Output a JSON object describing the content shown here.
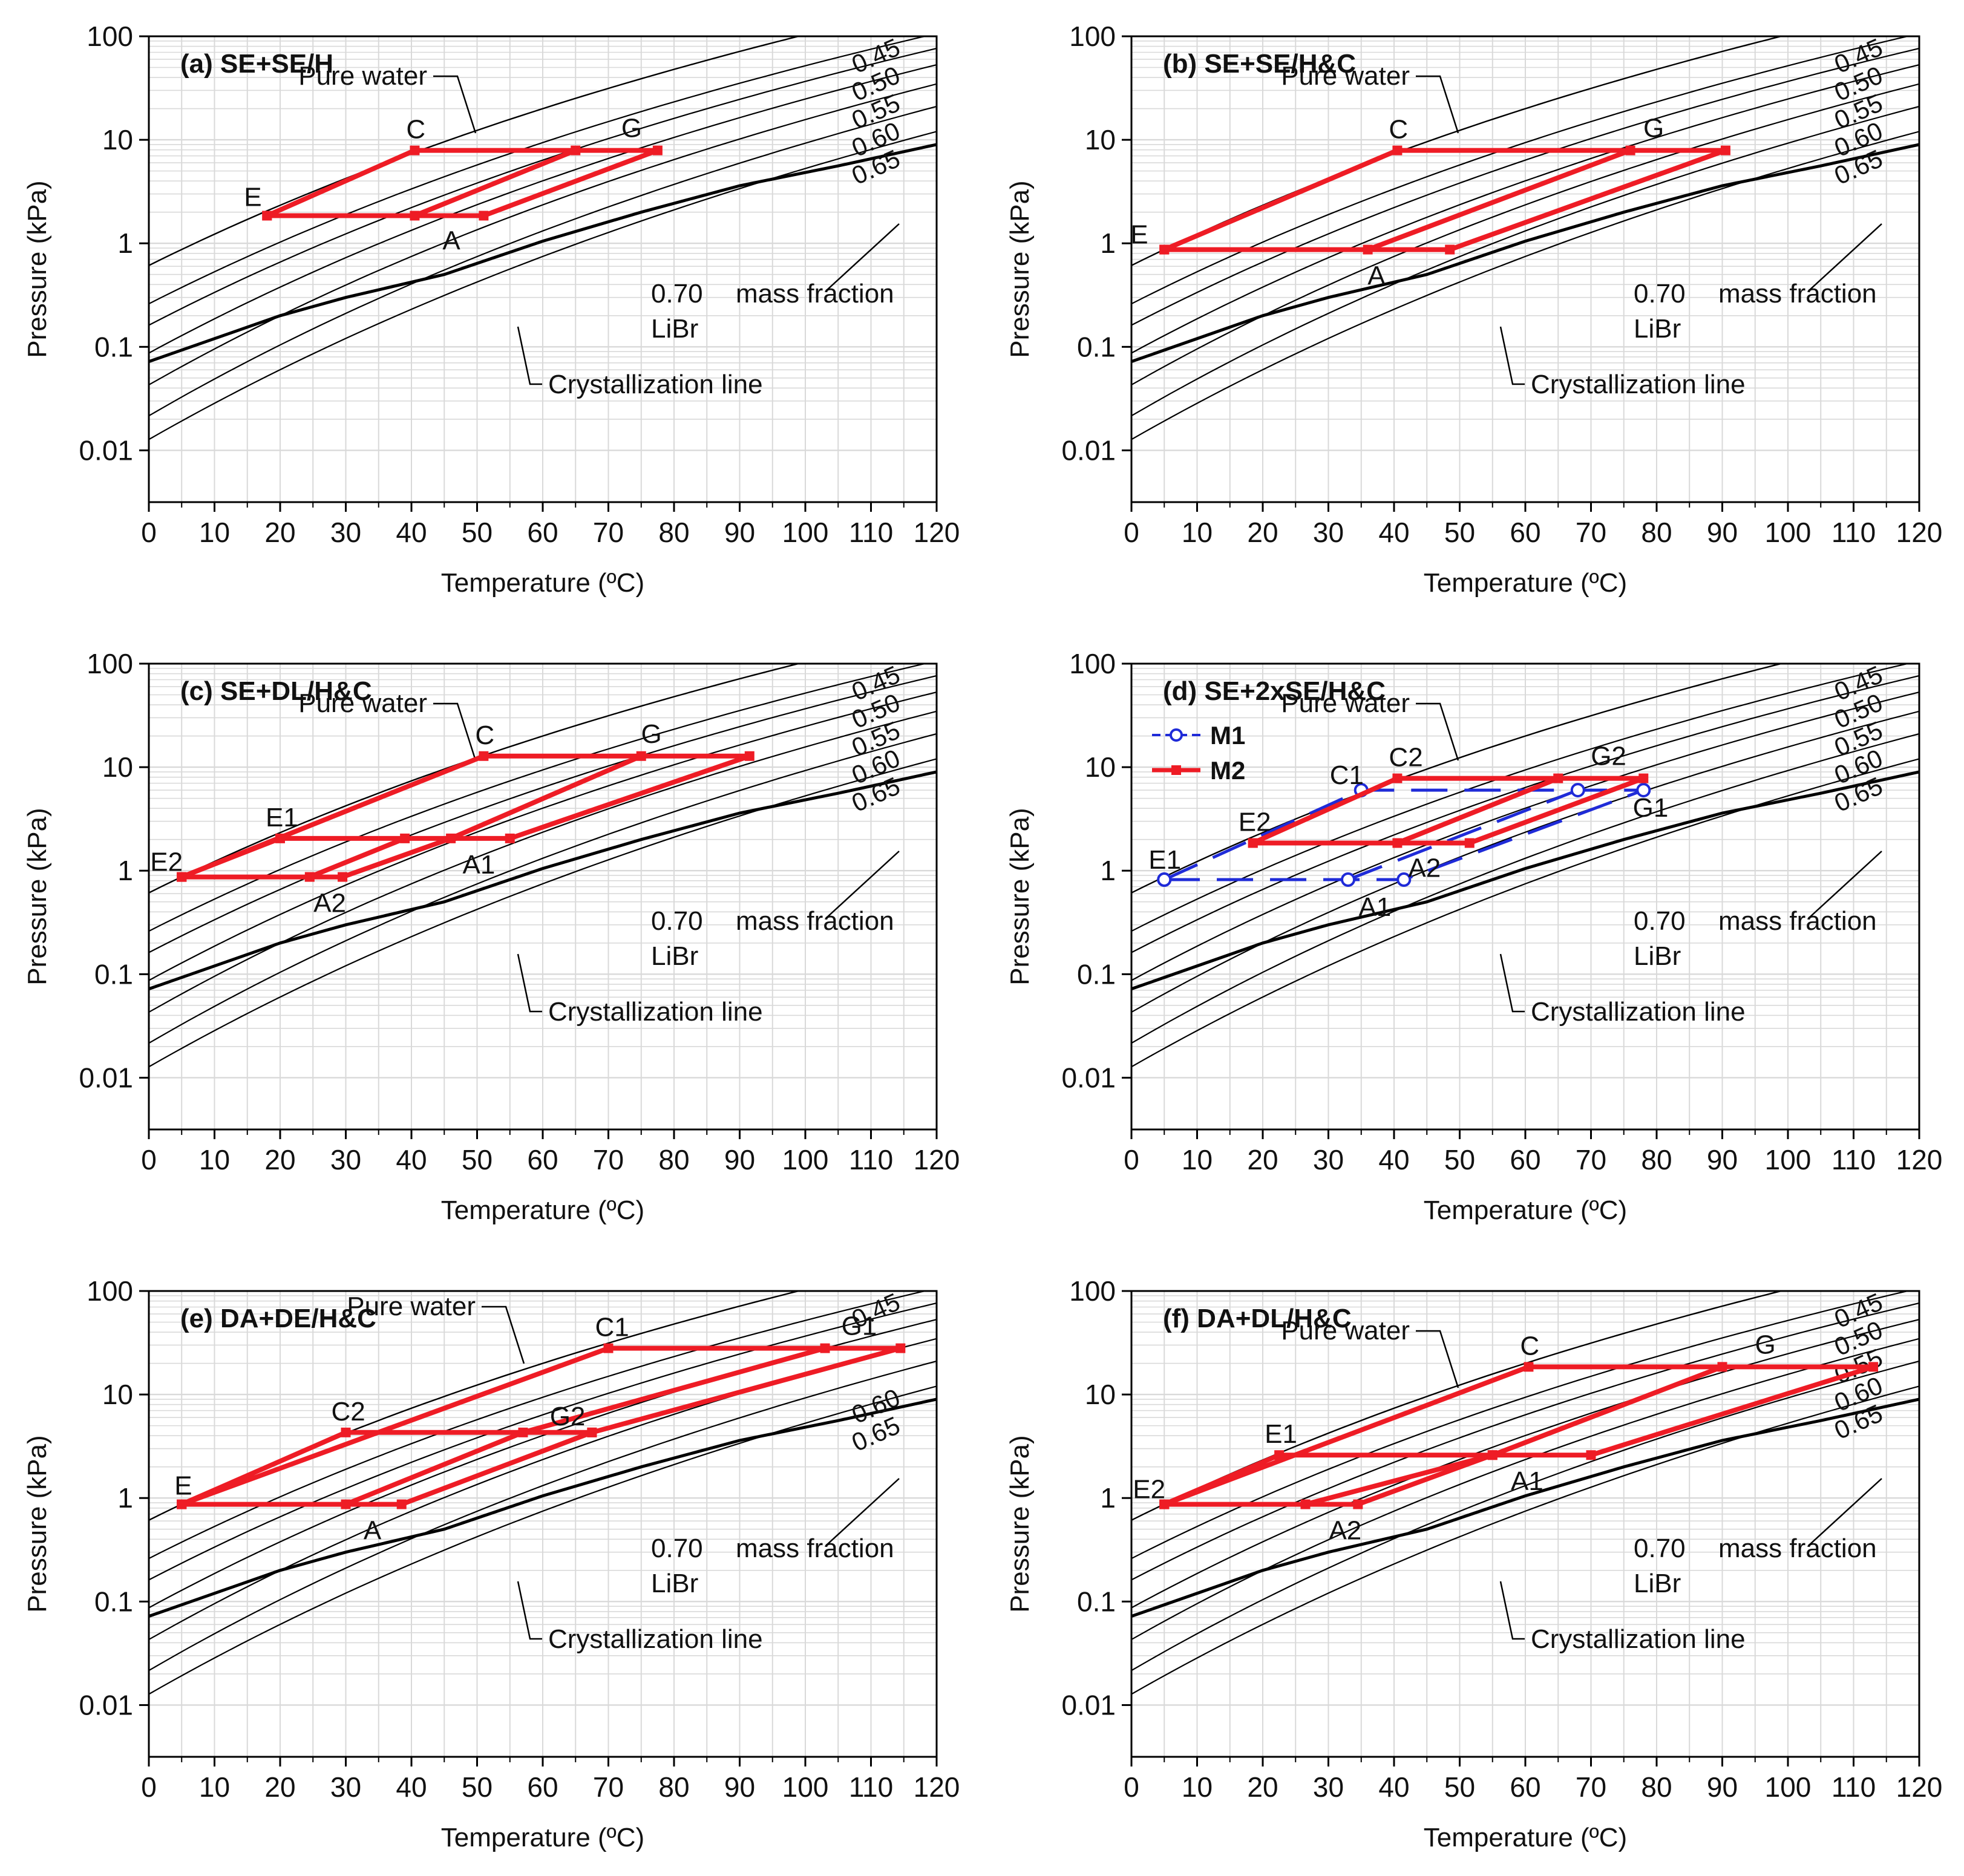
{
  "figure": {
    "description_labels": {
      "pure_water": "Pure water",
      "crystallization": "Crystallization line",
      "mass_fraction": "mass fraction",
      "libr": "LiBr"
    },
    "colors": {
      "cycle_red": "#ee1c25",
      "cycle_blue": "#1f2bd8",
      "grid": "#d9d9d9",
      "iso": "#000000"
    }
  },
  "chart_data": [
    {
      "type": "line",
      "title": "(a) SE+SE/H",
      "xlabel": "Temperature (ºC)",
      "ylabel": "Pressure (kPa)",
      "xlim": [
        0,
        120
      ],
      "ylim": [
        0.01,
        100
      ],
      "xticks": [
        "0",
        "10",
        "20",
        "30",
        "40",
        "50",
        "60",
        "70",
        "80",
        "90",
        "100",
        "110",
        "120"
      ],
      "yticks": [
        "0.01",
        "0.1",
        "1",
        "10",
        "100"
      ],
      "mass_fractions": [
        "0.45",
        "0.50",
        "0.55",
        "0.60",
        "0.65",
        "0.70"
      ],
      "series": [
        {
          "name": "M",
          "color": "#ee1c25",
          "dashed": false,
          "segments": [
            [
              [
                18,
                1.85
              ],
              [
                40.5,
                7.9
              ],
              [
                77.5,
                7.9
              ],
              [
                51,
                1.85
              ],
              [
                18,
                1.85
              ]
            ],
            [
              [
                40.5,
                1.85
              ],
              [
                65,
                7.9
              ]
            ]
          ]
        }
      ],
      "points": [
        {
          "label": "C",
          "x": 40.5,
          "y": 7.9
        },
        {
          "label": "G",
          "x": 74,
          "y": 7.9
        },
        {
          "label": "E",
          "x": 18,
          "y": 1.85
        },
        {
          "label": "A",
          "x": 44,
          "y": 1.85
        }
      ]
    },
    {
      "type": "line",
      "title": "(b) SE+SE/H&C",
      "xlabel": "Temperature (ºC)",
      "ylabel": "Pressure (kPa)",
      "xlim": [
        0,
        120
      ],
      "ylim": [
        0.01,
        100
      ],
      "xticks": [
        "0",
        "10",
        "20",
        "30",
        "40",
        "50",
        "60",
        "70",
        "80",
        "90",
        "100",
        "110",
        "120"
      ],
      "yticks": [
        "0.01",
        "0.1",
        "1",
        "10",
        "100"
      ],
      "mass_fractions": [
        "0.45",
        "0.50",
        "0.55",
        "0.60",
        "0.65",
        "0.70"
      ],
      "series": [
        {
          "name": "M",
          "color": "#ee1c25",
          "dashed": false,
          "segments": [
            [
              [
                5,
                0.87
              ],
              [
                40.5,
                7.9
              ],
              [
                90.5,
                7.9
              ],
              [
                48.5,
                0.87
              ],
              [
                5,
                0.87
              ]
            ],
            [
              [
                36,
                0.87
              ],
              [
                76,
                7.9
              ]
            ]
          ]
        }
      ],
      "points": [
        {
          "label": "C",
          "x": 40.5,
          "y": 7.9
        },
        {
          "label": "G",
          "x": 80,
          "y": 7.9
        },
        {
          "label": "E",
          "x": 5,
          "y": 0.87
        },
        {
          "label": "A",
          "x": 38,
          "y": 0.87
        }
      ]
    },
    {
      "type": "line",
      "title": "(c) SE+DL/H&C",
      "xlabel": "Temperature (ºC)",
      "ylabel": "Pressure (kPa)",
      "xlim": [
        0,
        120
      ],
      "ylim": [
        0.01,
        100
      ],
      "xticks": [
        "0",
        "10",
        "20",
        "30",
        "40",
        "50",
        "60",
        "70",
        "80",
        "90",
        "100",
        "110",
        "120"
      ],
      "yticks": [
        "0.01",
        "0.1",
        "1",
        "10",
        "100"
      ],
      "mass_fractions": [
        "0.45",
        "0.50",
        "0.55",
        "0.60",
        "0.65",
        "0.70"
      ],
      "series": [
        {
          "name": "M",
          "color": "#ee1c25",
          "dashed": false,
          "segments": [
            [
              [
                5,
                0.87
              ],
              [
                51,
                12.8
              ],
              [
                91.5,
                12.8
              ],
              [
                55,
                2.05
              ],
              [
                20,
                2.05
              ],
              [
                5,
                0.87
              ]
            ],
            [
              [
                5,
                0.87
              ],
              [
                29.5,
                0.87
              ],
              [
                46,
                2.05
              ],
              [
                75,
                12.8
              ]
            ],
            [
              [
                24.5,
                0.87
              ],
              [
                39,
                2.05
              ]
            ]
          ]
        }
      ],
      "points": [
        {
          "label": "C",
          "x": 51,
          "y": 12.8
        },
        {
          "label": "G",
          "x": 77,
          "y": 12.8
        },
        {
          "label": "E1",
          "x": 20,
          "y": 2.05
        },
        {
          "label": "A1",
          "x": 50,
          "y": 2.05
        },
        {
          "label": "E2",
          "x": 5,
          "y": 0.87
        },
        {
          "label": "A2",
          "x": 26,
          "y": 0.87
        }
      ]
    },
    {
      "type": "line",
      "title": "(d) SE+2xSE/H&C",
      "xlabel": "Temperature (ºC)",
      "ylabel": "Pressure (kPa)",
      "xlim": [
        0,
        120
      ],
      "ylim": [
        0.01,
        100
      ],
      "xticks": [
        "0",
        "10",
        "20",
        "30",
        "40",
        "50",
        "60",
        "70",
        "80",
        "90",
        "100",
        "110",
        "120"
      ],
      "yticks": [
        "0.01",
        "0.1",
        "1",
        "10",
        "100"
      ],
      "mass_fractions": [
        "0.45",
        "0.50",
        "0.55",
        "0.60",
        "0.65",
        "0.70"
      ],
      "legend": [
        {
          "name": "M1"
        },
        {
          "name": "M2"
        }
      ],
      "series": [
        {
          "name": "M1",
          "color": "#1f2bd8",
          "dashed": true,
          "segments": [
            [
              [
                5,
                0.82
              ],
              [
                35,
                6
              ],
              [
                78,
                6
              ],
              [
                41.5,
                0.82
              ],
              [
                5,
                0.82
              ]
            ],
            [
              [
                33,
                0.82
              ],
              [
                68,
                6
              ]
            ]
          ]
        },
        {
          "name": "M2",
          "color": "#ee1c25",
          "dashed": false,
          "segments": [
            [
              [
                18.5,
                1.85
              ],
              [
                40.5,
                7.8
              ],
              [
                78,
                7.8
              ],
              [
                51.5,
                1.85
              ],
              [
                18.5,
                1.85
              ]
            ],
            [
              [
                40.5,
                1.85
              ],
              [
                65,
                7.8
              ]
            ]
          ]
        }
      ],
      "points": [
        {
          "label": "C2",
          "x": 40.5,
          "y": 7.8
        },
        {
          "label": "G2",
          "x": 72,
          "y": 7.8
        },
        {
          "label": "C1",
          "x": 35,
          "y": 6
        },
        {
          "label": "G1",
          "x": 76,
          "y": 6
        },
        {
          "label": "E2",
          "x": 18.5,
          "y": 1.85
        },
        {
          "label": "A2",
          "x": 44,
          "y": 1.85
        },
        {
          "label": "E1",
          "x": 5,
          "y": 0.82
        },
        {
          "label": "A1",
          "x": 37,
          "y": 0.82
        }
      ]
    },
    {
      "type": "line",
      "title": "(e) DA+DE/H&C",
      "xlabel": "Temperature (ºC)",
      "ylabel": "Pressure (kPa)",
      "xlim": [
        0,
        120
      ],
      "ylim": [
        0.01,
        100
      ],
      "xticks": [
        "0",
        "10",
        "20",
        "30",
        "40",
        "50",
        "60",
        "70",
        "80",
        "90",
        "100",
        "110",
        "120"
      ],
      "yticks": [
        "0.01",
        "0.1",
        "1",
        "10",
        "100"
      ],
      "mass_fractions": [
        "0.45",
        "0.60",
        "0.65",
        "0.70"
      ],
      "series": [
        {
          "name": "M",
          "color": "#ee1c25",
          "dashed": false,
          "segments": [
            [
              [
                5,
                0.87
              ],
              [
                70,
                28
              ],
              [
                114.5,
                28
              ],
              [
                67.5,
                4.3
              ],
              [
                30,
                4.3
              ],
              [
                5,
                0.87
              ]
            ],
            [
              [
                5,
                0.87
              ],
              [
                38.5,
                0.87
              ],
              [
                67.5,
                4.3
              ]
            ],
            [
              [
                30,
                0.87
              ],
              [
                57,
                4.3
              ],
              [
                103,
                28
              ]
            ]
          ]
        }
      ],
      "points": [
        {
          "label": "C1",
          "x": 70,
          "y": 28
        },
        {
          "label": "G1",
          "x": 109,
          "y": 28
        },
        {
          "label": "C2",
          "x": 30,
          "y": 4.3
        },
        {
          "label": "G2",
          "x": 62,
          "y": 4.3
        },
        {
          "label": "E",
          "x": 5,
          "y": 0.87
        },
        {
          "label": "A",
          "x": 34,
          "y": 0.87
        }
      ]
    },
    {
      "type": "line",
      "title": "(f) DA+DL/H&C",
      "xlabel": "Temperature (ºC)",
      "ylabel": "Pressure (kPa)",
      "xlim": [
        0,
        120
      ],
      "ylim": [
        0.01,
        100
      ],
      "xticks": [
        "0",
        "10",
        "20",
        "30",
        "40",
        "50",
        "60",
        "70",
        "80",
        "90",
        "100",
        "110",
        "120"
      ],
      "yticks": [
        "0.01",
        "0.1",
        "1",
        "10",
        "100"
      ],
      "mass_fractions": [
        "0.45",
        "0.50",
        "0.55",
        "0.60",
        "0.65",
        "0.70"
      ],
      "series": [
        {
          "name": "M",
          "color": "#ee1c25",
          "dashed": false,
          "segments": [
            [
              [
                5,
                0.87
              ],
              [
                60.5,
                18.5
              ],
              [
                113,
                18.5
              ],
              [
                70,
                2.6
              ],
              [
                22.5,
                2.6
              ],
              [
                5,
                0.87
              ]
            ],
            [
              [
                5,
                0.87
              ],
              [
                34.5,
                0.87
              ],
              [
                55,
                2.6
              ],
              [
                90,
                18.5
              ]
            ],
            [
              [
                26.5,
                0.87
              ],
              [
                55,
                2.6
              ]
            ]
          ]
        }
      ],
      "points": [
        {
          "label": "C",
          "x": 60.5,
          "y": 18.5
        },
        {
          "label": "G",
          "x": 97,
          "y": 18.5
        },
        {
          "label": "E1",
          "x": 22.5,
          "y": 2.6
        },
        {
          "label": "A1",
          "x": 60,
          "y": 2.6
        },
        {
          "label": "E2",
          "x": 5,
          "y": 0.87
        },
        {
          "label": "A2",
          "x": 31,
          "y": 0.87
        }
      ]
    }
  ]
}
